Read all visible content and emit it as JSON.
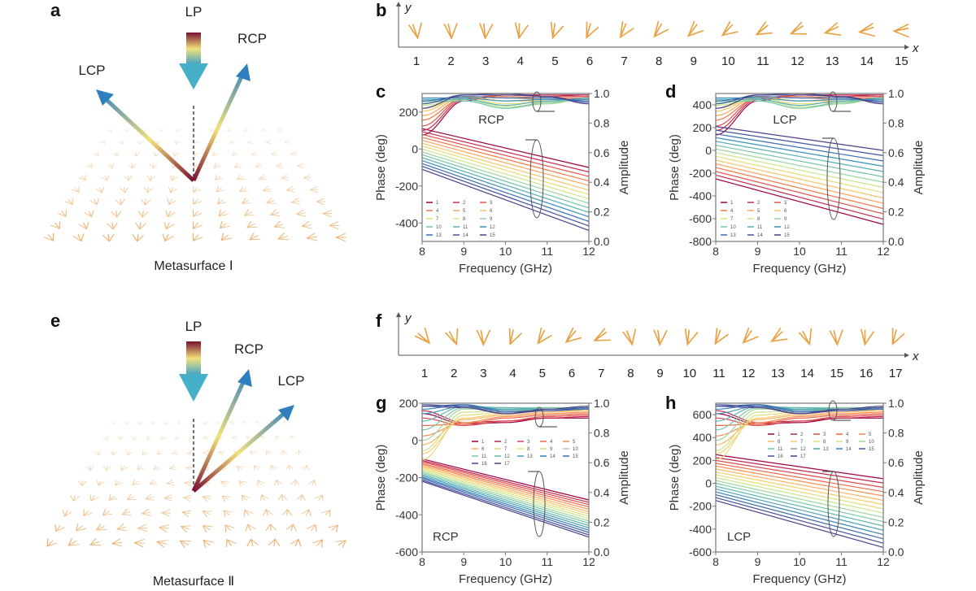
{
  "panel_labels": {
    "a": "a",
    "b": "b",
    "c": "c",
    "d": "d",
    "e": "e",
    "f": "f",
    "g": "g",
    "h": "h"
  },
  "panel_a": {
    "lp": "LP",
    "lcp": "LCP",
    "rcp": "RCP",
    "caption": "Metasurface Ⅰ"
  },
  "panel_e": {
    "lp": "LP",
    "lcp": "LCP",
    "rcp": "RCP",
    "caption": "Metasurface Ⅱ"
  },
  "panel_b": {
    "y_label": "y",
    "x_label": "x",
    "cells": [
      "1",
      "2",
      "3",
      "4",
      "5",
      "6",
      "7",
      "8",
      "9",
      "10",
      "11",
      "12",
      "13",
      "14",
      "15"
    ]
  },
  "panel_f": {
    "y_label": "y",
    "x_label": "x",
    "cells": [
      "1",
      "2",
      "3",
      "4",
      "5",
      "6",
      "7",
      "8",
      "9",
      "10",
      "11",
      "12",
      "13",
      "14",
      "15",
      "16",
      "17"
    ]
  },
  "colors": {
    "arrow_top": "#7a1030",
    "arrow_mid": "#f2e27a",
    "arrow_bottom": "#3a8fc0",
    "unit_cell": "#e8a040"
  },
  "chart_data": [
    {
      "panel": "c",
      "type": "line",
      "annotation": "RCP",
      "xlabel": "Frequency (GHz)",
      "ylabel": "Phase (deg)",
      "y2label": "Amplitude",
      "xlim": [
        8,
        12
      ],
      "ylim": [
        -500,
        300
      ],
      "y2lim": [
        0,
        1
      ],
      "xticks": [
        "8",
        "9",
        "10",
        "11",
        "12"
      ],
      "yticks": [
        "-400",
        "-200",
        "0",
        "200"
      ],
      "y2ticks": [
        "0.0",
        "0.2",
        "0.4",
        "0.6",
        "0.8",
        "1.0"
      ],
      "x_phase": [
        8,
        12
      ],
      "x_amp": [
        8,
        9,
        10,
        11,
        12
      ],
      "series": [
        {
          "name": "1",
          "phase": [
            110,
            -100
          ],
          "amplitude": [
            0.72,
            0.95,
            0.99,
            0.99,
            0.99
          ]
        },
        {
          "name": "2",
          "phase": [
            94,
            -124
          ],
          "amplitude": [
            0.75,
            0.96,
            0.99,
            0.99,
            0.98
          ]
        },
        {
          "name": "3",
          "phase": [
            79,
            -149
          ],
          "amplitude": [
            0.78,
            0.97,
            0.99,
            0.98,
            0.98
          ]
        },
        {
          "name": "4",
          "phase": [
            63,
            -173
          ],
          "amplitude": [
            0.82,
            0.97,
            0.98,
            0.97,
            0.97
          ]
        },
        {
          "name": "5",
          "phase": [
            47,
            -197
          ],
          "amplitude": [
            0.85,
            0.98,
            0.97,
            0.96,
            0.96
          ]
        },
        {
          "name": "6",
          "phase": [
            31,
            -222
          ],
          "amplitude": [
            0.88,
            0.98,
            0.95,
            0.95,
            0.96
          ]
        },
        {
          "name": "7",
          "phase": [
            16,
            -246
          ],
          "amplitude": [
            0.9,
            0.97,
            0.93,
            0.94,
            0.96
          ]
        },
        {
          "name": "8",
          "phase": [
            0,
            -270
          ],
          "amplitude": [
            0.92,
            0.96,
            0.91,
            0.93,
            0.97
          ]
        },
        {
          "name": "9",
          "phase": [
            -16,
            -294
          ],
          "amplitude": [
            0.94,
            0.95,
            0.9,
            0.93,
            0.97
          ]
        },
        {
          "name": "10",
          "phase": [
            -31,
            -319
          ],
          "amplitude": [
            0.95,
            0.95,
            0.9,
            0.94,
            0.97
          ]
        },
        {
          "name": "11",
          "phase": [
            -47,
            -343
          ],
          "amplitude": [
            0.96,
            0.96,
            0.92,
            0.95,
            0.97
          ]
        },
        {
          "name": "12",
          "phase": [
            -63,
            -367
          ],
          "amplitude": [
            0.97,
            0.97,
            0.95,
            0.96,
            0.96
          ]
        },
        {
          "name": "13",
          "phase": [
            -79,
            -392
          ],
          "amplitude": [
            0.95,
            0.98,
            0.97,
            0.97,
            0.95
          ]
        },
        {
          "name": "14",
          "phase": [
            -94,
            -416
          ],
          "amplitude": [
            0.93,
            0.99,
            0.99,
            0.98,
            0.94
          ]
        },
        {
          "name": "15",
          "phase": [
            -110,
            -440
          ],
          "amplitude": [
            0.9,
            0.99,
            1.0,
            0.98,
            0.93
          ]
        }
      ]
    },
    {
      "panel": "d",
      "type": "line",
      "annotation": "LCP",
      "xlabel": "Frequency (GHz)",
      "ylabel": "Phase (deg)",
      "y2label": "Amplitude",
      "xlim": [
        8,
        12
      ],
      "ylim": [
        -800,
        500
      ],
      "y2lim": [
        0,
        1
      ],
      "xticks": [
        "8",
        "9",
        "10",
        "11",
        "12"
      ],
      "yticks": [
        "-800",
        "-600",
        "-400",
        "-200",
        "0",
        "200",
        "400"
      ],
      "y2ticks": [
        "0.0",
        "0.2",
        "0.4",
        "0.6",
        "0.8",
        "1.0"
      ],
      "x_phase": [
        8,
        12
      ],
      "x_amp": [
        8,
        9,
        10,
        11,
        12
      ],
      "series": [
        {
          "name": "1",
          "phase": [
            -250,
            -650
          ],
          "amplitude": [
            0.72,
            0.95,
            0.99,
            0.99,
            0.99
          ]
        },
        {
          "name": "2",
          "phase": [
            -217,
            -604
          ],
          "amplitude": [
            0.75,
            0.96,
            0.99,
            0.99,
            0.98
          ]
        },
        {
          "name": "3",
          "phase": [
            -184,
            -557
          ],
          "amplitude": [
            0.78,
            0.97,
            0.99,
            0.98,
            0.98
          ]
        },
        {
          "name": "4",
          "phase": [
            -151,
            -511
          ],
          "amplitude": [
            0.82,
            0.97,
            0.98,
            0.97,
            0.97
          ]
        },
        {
          "name": "5",
          "phase": [
            -118,
            -464
          ],
          "amplitude": [
            0.85,
            0.98,
            0.97,
            0.96,
            0.96
          ]
        },
        {
          "name": "6",
          "phase": [
            -86,
            -418
          ],
          "amplitude": [
            0.88,
            0.98,
            0.95,
            0.95,
            0.96
          ]
        },
        {
          "name": "7",
          "phase": [
            -53,
            -371
          ],
          "amplitude": [
            0.9,
            0.97,
            0.93,
            0.94,
            0.96
          ]
        },
        {
          "name": "8",
          "phase": [
            -20,
            -325
          ],
          "amplitude": [
            0.92,
            0.96,
            0.91,
            0.93,
            0.97
          ]
        },
        {
          "name": "9",
          "phase": [
            13,
            -279
          ],
          "amplitude": [
            0.94,
            0.95,
            0.9,
            0.93,
            0.97
          ]
        },
        {
          "name": "10",
          "phase": [
            46,
            -232
          ],
          "amplitude": [
            0.95,
            0.95,
            0.9,
            0.94,
            0.97
          ]
        },
        {
          "name": "11",
          "phase": [
            79,
            -186
          ],
          "amplitude": [
            0.96,
            0.96,
            0.92,
            0.95,
            0.97
          ]
        },
        {
          "name": "12",
          "phase": [
            112,
            -139
          ],
          "amplitude": [
            0.97,
            0.97,
            0.95,
            0.96,
            0.96
          ]
        },
        {
          "name": "13",
          "phase": [
            145,
            -93
          ],
          "amplitude": [
            0.95,
            0.98,
            0.97,
            0.97,
            0.95
          ]
        },
        {
          "name": "14",
          "phase": [
            178,
            -46
          ],
          "amplitude": [
            0.93,
            0.99,
            0.99,
            0.98,
            0.94
          ]
        },
        {
          "name": "15",
          "phase": [
            210,
            0
          ],
          "amplitude": [
            0.9,
            0.99,
            1.0,
            0.98,
            0.93
          ]
        }
      ]
    },
    {
      "panel": "g",
      "type": "line",
      "annotation": "RCP",
      "xlabel": "Frequency (GHz)",
      "ylabel": "Phase (deg)",
      "y2label": "Amplitude",
      "xlim": [
        8,
        12
      ],
      "ylim": [
        -600,
        200
      ],
      "y2lim": [
        0,
        1
      ],
      "xticks": [
        "8",
        "9",
        "10",
        "11",
        "12"
      ],
      "yticks": [
        "-600",
        "-400",
        "-200",
        "0",
        "200"
      ],
      "y2ticks": [
        "0.0",
        "0.2",
        "0.4",
        "0.6",
        "0.8",
        "1.0"
      ],
      "x_phase": [
        8,
        12
      ],
      "x_amp": [
        8,
        9,
        10,
        11,
        12
      ],
      "series": [
        {
          "name": "1",
          "phase": [
            -100,
            -320
          ],
          "amplitude": [
            0.93,
            0.86,
            0.87,
            0.9,
            0.9
          ]
        },
        {
          "name": "2",
          "phase": [
            -108,
            -333
          ],
          "amplitude": [
            0.95,
            0.87,
            0.88,
            0.9,
            0.91
          ]
        },
        {
          "name": "3",
          "phase": [
            -115,
            -345
          ],
          "amplitude": [
            0.9,
            0.85,
            0.88,
            0.91,
            0.92
          ]
        },
        {
          "name": "4",
          "phase": [
            -123,
            -358
          ],
          "amplitude": [
            0.85,
            0.86,
            0.9,
            0.92,
            0.93
          ]
        },
        {
          "name": "5",
          "phase": [
            -130,
            -370
          ],
          "amplitude": [
            0.78,
            0.87,
            0.91,
            0.93,
            0.94
          ]
        },
        {
          "name": "6",
          "phase": [
            -138,
            -383
          ],
          "amplitude": [
            0.72,
            0.89,
            0.92,
            0.94,
            0.95
          ]
        },
        {
          "name": "7",
          "phase": [
            -145,
            -395
          ],
          "amplitude": [
            0.66,
            0.9,
            0.93,
            0.95,
            0.95
          ]
        },
        {
          "name": "8",
          "phase": [
            -153,
            -408
          ],
          "amplitude": [
            0.62,
            0.92,
            0.94,
            0.96,
            0.96
          ]
        },
        {
          "name": "9",
          "phase": [
            -160,
            -420
          ],
          "amplitude": [
            0.68,
            0.94,
            0.95,
            0.96,
            0.96
          ]
        },
        {
          "name": "10",
          "phase": [
            -168,
            -433
          ],
          "amplitude": [
            0.75,
            0.96,
            0.96,
            0.97,
            0.97
          ]
        },
        {
          "name": "11",
          "phase": [
            -175,
            -445
          ],
          "amplitude": [
            0.82,
            0.97,
            0.97,
            0.97,
            0.97
          ]
        },
        {
          "name": "12",
          "phase": [
            -183,
            -458
          ],
          "amplitude": [
            0.88,
            0.98,
            0.97,
            0.96,
            0.97
          ]
        },
        {
          "name": "13",
          "phase": [
            -190,
            -470
          ],
          "amplitude": [
            0.93,
            0.98,
            0.96,
            0.96,
            0.97
          ]
        },
        {
          "name": "14",
          "phase": [
            -198,
            -483
          ],
          "amplitude": [
            0.96,
            0.99,
            0.95,
            0.95,
            0.96
          ]
        },
        {
          "name": "15",
          "phase": [
            -205,
            -495
          ],
          "amplitude": [
            0.98,
            0.99,
            0.94,
            0.95,
            0.96
          ]
        },
        {
          "name": "16",
          "phase": [
            -213,
            -508
          ],
          "amplitude": [
            0.99,
            0.98,
            0.93,
            0.95,
            0.97
          ]
        },
        {
          "name": "17",
          "phase": [
            -220,
            -520
          ],
          "amplitude": [
            0.98,
            0.97,
            0.93,
            0.96,
            0.98
          ]
        }
      ]
    },
    {
      "panel": "h",
      "type": "line",
      "annotation": "LCP",
      "xlabel": "Frequency (GHz)",
      "ylabel": "Phase (deg)",
      "y2label": "Amplitude",
      "xlim": [
        8,
        12
      ],
      "ylim": [
        -600,
        700
      ],
      "y2lim": [
        0,
        1
      ],
      "xticks": [
        "8",
        "9",
        "10",
        "11",
        "12"
      ],
      "yticks": [
        "-600",
        "-400",
        "-200",
        "0",
        "200",
        "400",
        "600"
      ],
      "y2ticks": [
        "0.0",
        "0.2",
        "0.4",
        "0.6",
        "0.8",
        "1.0"
      ],
      "x_phase": [
        8,
        12
      ],
      "x_amp": [
        8,
        9,
        10,
        11,
        12
      ],
      "series": [
        {
          "name": "1",
          "phase": [
            250,
            40
          ],
          "amplitude": [
            0.93,
            0.86,
            0.87,
            0.9,
            0.9
          ]
        },
        {
          "name": "2",
          "phase": [
            225,
            3
          ],
          "amplitude": [
            0.95,
            0.87,
            0.88,
            0.9,
            0.91
          ]
        },
        {
          "name": "3",
          "phase": [
            200,
            -35
          ],
          "amplitude": [
            0.9,
            0.85,
            0.88,
            0.91,
            0.92
          ]
        },
        {
          "name": "4",
          "phase": [
            175,
            -73
          ],
          "amplitude": [
            0.85,
            0.86,
            0.9,
            0.92,
            0.93
          ]
        },
        {
          "name": "5",
          "phase": [
            150,
            -110
          ],
          "amplitude": [
            0.78,
            0.87,
            0.91,
            0.93,
            0.94
          ]
        },
        {
          "name": "6",
          "phase": [
            125,
            -148
          ],
          "amplitude": [
            0.72,
            0.89,
            0.92,
            0.94,
            0.95
          ]
        },
        {
          "name": "7",
          "phase": [
            100,
            -185
          ],
          "amplitude": [
            0.66,
            0.9,
            0.93,
            0.95,
            0.95
          ]
        },
        {
          "name": "8",
          "phase": [
            75,
            -223
          ],
          "amplitude": [
            0.62,
            0.92,
            0.94,
            0.96,
            0.96
          ]
        },
        {
          "name": "9",
          "phase": [
            50,
            -260
          ],
          "amplitude": [
            0.68,
            0.94,
            0.95,
            0.96,
            0.96
          ]
        },
        {
          "name": "10",
          "phase": [
            25,
            -298
          ],
          "amplitude": [
            0.75,
            0.96,
            0.96,
            0.97,
            0.97
          ]
        },
        {
          "name": "11",
          "phase": [
            0,
            -335
          ],
          "amplitude": [
            0.82,
            0.97,
            0.97,
            0.97,
            0.97
          ]
        },
        {
          "name": "12",
          "phase": [
            -25,
            -373
          ],
          "amplitude": [
            0.88,
            0.98,
            0.97,
            0.96,
            0.97
          ]
        },
        {
          "name": "13",
          "phase": [
            -50,
            -410
          ],
          "amplitude": [
            0.93,
            0.98,
            0.96,
            0.96,
            0.97
          ]
        },
        {
          "name": "14",
          "phase": [
            -75,
            -448
          ],
          "amplitude": [
            0.96,
            0.99,
            0.95,
            0.95,
            0.96
          ]
        },
        {
          "name": "15",
          "phase": [
            -100,
            -485
          ],
          "amplitude": [
            0.98,
            0.99,
            0.94,
            0.95,
            0.96
          ]
        },
        {
          "name": "16",
          "phase": [
            -125,
            -523
          ],
          "amplitude": [
            0.99,
            0.98,
            0.93,
            0.95,
            0.97
          ]
        },
        {
          "name": "17",
          "phase": [
            -150,
            -560
          ],
          "amplitude": [
            0.98,
            0.97,
            0.93,
            0.96,
            0.98
          ]
        }
      ]
    }
  ]
}
